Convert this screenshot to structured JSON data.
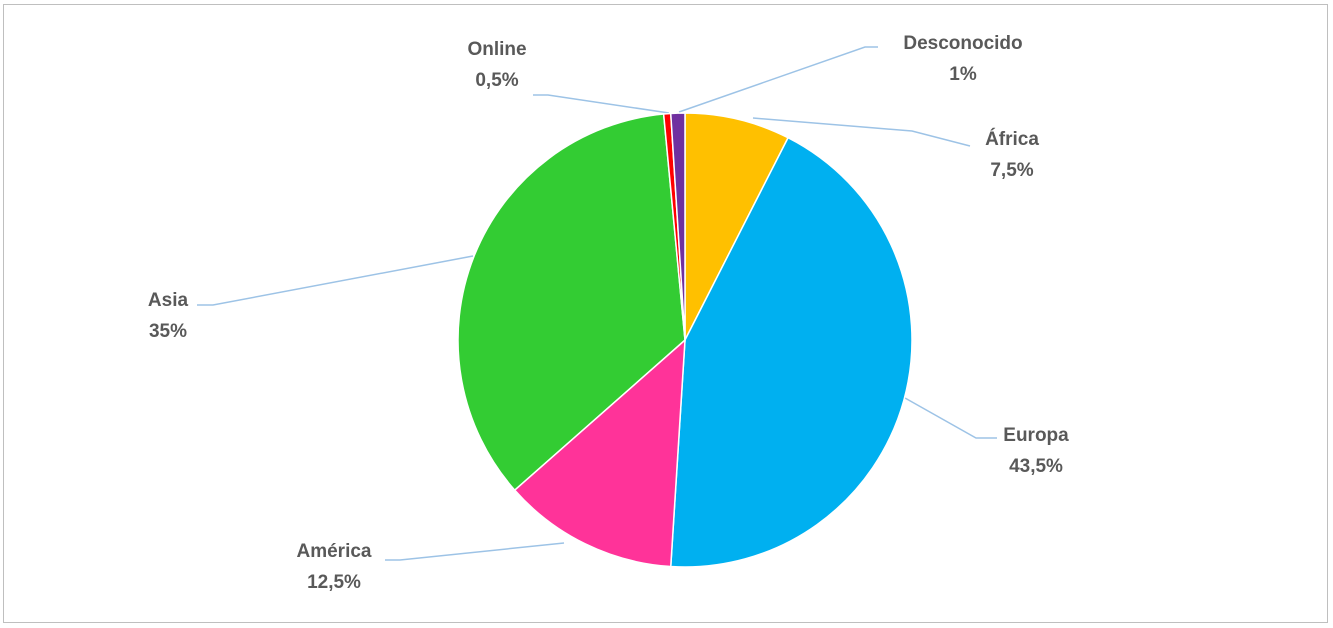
{
  "chart_data": {
    "type": "pie",
    "title": "",
    "start_angle_deg": 0,
    "direction": "clockwise",
    "slices": [
      {
        "name": "África",
        "value": 7.5,
        "label": "7,5%",
        "color": "#FFC000"
      },
      {
        "name": "Europa",
        "value": 43.5,
        "label": "43,5%",
        "color": "#00B0F0"
      },
      {
        "name": "América",
        "value": 12.5,
        "label": "12,5%",
        "color": "#FF3399"
      },
      {
        "name": "Asia",
        "value": 35,
        "label": "35%",
        "color": "#33CC33"
      },
      {
        "name": "Online",
        "value": 0.5,
        "label": "0,5%",
        "color": "#FF0000"
      },
      {
        "name": "Desconocido",
        "value": 1,
        "label": "1%",
        "color": "#7030A0"
      }
    ],
    "leader_line_color": "#9DC3E6",
    "label_color": "#595959"
  }
}
